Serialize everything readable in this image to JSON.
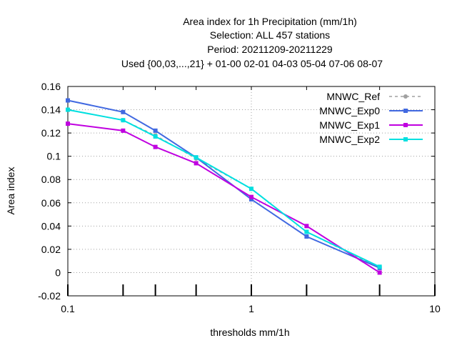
{
  "chart_data": {
    "type": "line",
    "title_lines": [
      "Area index  for 1h Precipitation (mm/1h)",
      "Selection: ALL    457 stations",
      "Period: 20211209-20211229",
      "Used {00,03,...,21} + 01-00 02-01 04-03 05-04 07-06 08-07"
    ],
    "xlabel": "thresholds mm/1h",
    "ylabel": "Area index",
    "x_scale": "log",
    "xlim": [
      0.1,
      10
    ],
    "ylim": [
      -0.02,
      0.16
    ],
    "x_ticks": [
      0.1,
      0.2,
      0.3,
      0.5,
      1,
      2,
      5,
      10
    ],
    "x_tick_labels": [
      {
        "value": 0.1,
        "label": "0.1"
      },
      {
        "value": 1,
        "label": "1"
      },
      {
        "value": 10,
        "label": "10"
      }
    ],
    "y_ticks": [
      {
        "value": -0.02,
        "label": "-0.02"
      },
      {
        "value": 0,
        "label": "0"
      },
      {
        "value": 0.02,
        "label": "0.02"
      },
      {
        "value": 0.04,
        "label": "0.04"
      },
      {
        "value": 0.06,
        "label": "0.06"
      },
      {
        "value": 0.08,
        "label": "0.08"
      },
      {
        "value": 0.1,
        "label": "0.1"
      },
      {
        "value": 0.12,
        "label": "0.12"
      },
      {
        "value": 0.14,
        "label": "0.14"
      },
      {
        "value": 0.16,
        "label": "0.16"
      }
    ],
    "grid": true,
    "legend_position": "top-right",
    "series": [
      {
        "name": "MNWC_Ref",
        "color": "#a0a0a0",
        "dashed": true,
        "x": [
          0.1,
          0.2,
          0.3,
          0.5,
          1,
          2,
          5
        ],
        "y": [
          0.14,
          0.131,
          0.118,
          0.098,
          0.072,
          0.035,
          0.004
        ]
      },
      {
        "name": "MNWC_Exp0",
        "color": "#4169e1",
        "dashed": false,
        "x": [
          0.1,
          0.2,
          0.3,
          0.5,
          1,
          2,
          5
        ],
        "y": [
          0.148,
          0.138,
          0.122,
          0.099,
          0.063,
          0.031,
          0.004
        ]
      },
      {
        "name": "MNWC_Exp1",
        "color": "#c000e0",
        "dashed": false,
        "x": [
          0.1,
          0.2,
          0.3,
          0.5,
          1,
          2,
          5
        ],
        "y": [
          0.128,
          0.122,
          0.108,
          0.094,
          0.065,
          0.04,
          0.0
        ]
      },
      {
        "name": "MNWC_Exp2",
        "color": "#00e0e0",
        "dashed": false,
        "x": [
          0.1,
          0.2,
          0.3,
          0.5,
          1,
          2,
          5
        ],
        "y": [
          0.14,
          0.131,
          0.117,
          0.099,
          0.072,
          0.035,
          0.005
        ]
      }
    ]
  }
}
